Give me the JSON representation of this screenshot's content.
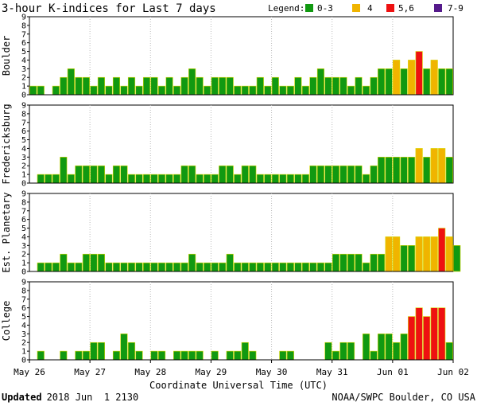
{
  "title": "3-hour K-indices for Last 7 days",
  "legend": {
    "label": "Legend:",
    "items": [
      {
        "label": "0-3",
        "color": "#119911"
      },
      {
        "label": "4",
        "color": "#f0b400"
      },
      {
        "label": "5,6",
        "color": "#ee1111"
      },
      {
        "label": "7-9",
        "color": "#551a8b"
      }
    ]
  },
  "footer": {
    "updated_label": "Updated",
    "updated_value": "2018 Jun  1 2130",
    "source": "NOAA/SWPC Boulder, CO USA"
  },
  "chart_data": {
    "type": "bar",
    "xlabel": "Coordinate Universal Time (UTC)",
    "x_ticks": [
      "May 26",
      "May 27",
      "May 28",
      "May 29",
      "May 30",
      "May 31",
      "Jun 01",
      "Jun 02"
    ],
    "y_ticks": [
      "0",
      "1",
      "2",
      "3",
      "4",
      "5",
      "6",
      "7",
      "8",
      "9"
    ],
    "ylim": [
      0,
      9
    ],
    "interval_hours": 3,
    "panels": [
      {
        "name": "Boulder",
        "values": [
          1,
          1,
          0,
          1,
          2,
          3,
          2,
          2,
          1,
          2,
          1,
          2,
          1,
          2,
          1,
          2,
          2,
          1,
          2,
          1,
          2,
          3,
          2,
          1,
          2,
          2,
          2,
          1,
          1,
          1,
          2,
          1,
          2,
          1,
          1,
          2,
          1,
          2,
          3,
          2,
          2,
          2,
          1,
          2,
          1,
          2,
          3,
          3,
          4,
          3,
          4,
          5,
          3,
          4,
          3,
          3,
          0
        ]
      },
      {
        "name": "Fredericksburg",
        "values": [
          0,
          1,
          1,
          1,
          3,
          1,
          2,
          2,
          2,
          2,
          1,
          2,
          2,
          1,
          1,
          1,
          1,
          1,
          1,
          1,
          2,
          2,
          1,
          1,
          1,
          2,
          2,
          1,
          2,
          2,
          1,
          1,
          1,
          1,
          1,
          1,
          1,
          2,
          2,
          2,
          2,
          2,
          2,
          2,
          1,
          2,
          3,
          3,
          3,
          3,
          3,
          4,
          3,
          4,
          4,
          3,
          0
        ]
      },
      {
        "name": "Est. Planetary",
        "values": [
          0,
          1,
          1,
          1,
          2,
          1,
          1,
          2,
          2,
          2,
          1,
          1,
          1,
          1,
          1,
          1,
          1,
          1,
          1,
          1,
          1,
          2,
          1,
          1,
          1,
          1,
          2,
          1,
          1,
          1,
          1,
          1,
          1,
          1,
          1,
          1,
          1,
          1,
          1,
          1,
          2,
          2,
          2,
          2,
          1,
          2,
          2,
          4,
          4,
          3,
          3,
          4,
          4,
          4,
          5,
          4,
          3
        ]
      },
      {
        "name": "College",
        "values": [
          0,
          1,
          0,
          0,
          1,
          0,
          1,
          1,
          2,
          2,
          0,
          1,
          3,
          2,
          1,
          0,
          1,
          1,
          0,
          1,
          1,
          1,
          1,
          0,
          1,
          0,
          1,
          1,
          2,
          1,
          0,
          0,
          0,
          1,
          1,
          0,
          0,
          0,
          0,
          2,
          1,
          2,
          2,
          0,
          3,
          1,
          3,
          3,
          2,
          3,
          5,
          6,
          5,
          6,
          6,
          2,
          0
        ]
      }
    ]
  }
}
